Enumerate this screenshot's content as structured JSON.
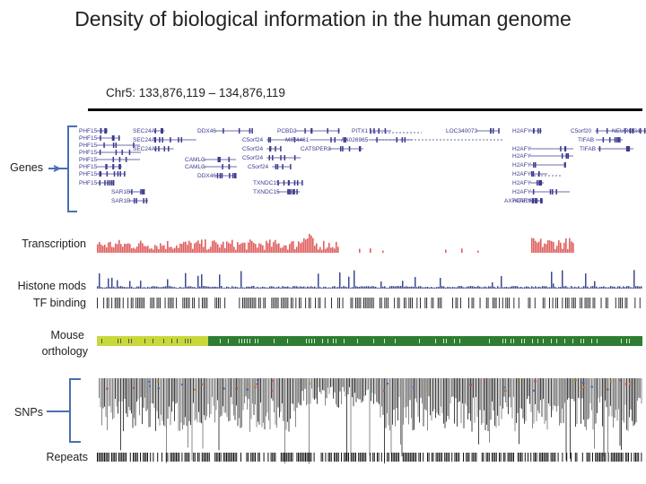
{
  "title": "Density of biological information in the human genome",
  "region": "Chr5: 133,876,119 – 134,876,119",
  "track_labels": {
    "genes": "Genes",
    "transcription": "Transcription",
    "histone": "Histone mods",
    "tf": "TF binding",
    "mouse_line1": "Mouse",
    "mouse_line2": "orthology",
    "snps": "SNPs",
    "repeats": "Repeats"
  },
  "gene_names": [
    "PHF15",
    "PHF15",
    "PHF15",
    "PHF15",
    "PHF15",
    "PHF15",
    "PHF15",
    "PHF15",
    "SEC24A",
    "SEC24A",
    "SEC24A",
    "SAR1B",
    "SAR1B",
    "DDX46",
    "CAMLG",
    "CAMLG",
    "DDX46",
    "C5orf24",
    "C5orf24",
    "C5orf24",
    "C5orf24",
    "TXNDC15",
    "TXNDC15",
    "PCBD2",
    "MIR4461",
    "CATSPER3",
    "PITX1",
    "AK026965",
    "LOC340073",
    "H2AFY",
    "H2AFY",
    "H2AFY",
    "H2AFY",
    "H2AFY",
    "H2AFY",
    "H2AFY",
    "H2AFY",
    "AX747819",
    "C5orf20",
    "TIFAB",
    "TIFAB",
    "NEUROG1"
  ],
  "colors": {
    "gene": "#3b3b8f",
    "bracket": "#4a6fb0",
    "transcription": "#e06060",
    "histone": "#3c4a8c",
    "tf": "#1a1a1a",
    "mouse_light": "#c8d83a",
    "mouse_dark": "#2e7d32",
    "snp": "#555555",
    "repeat": "#111111"
  }
}
